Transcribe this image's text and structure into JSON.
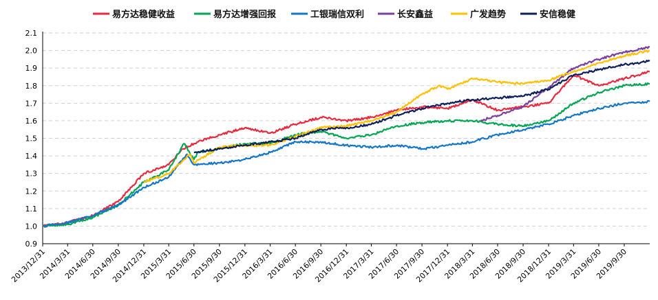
{
  "chart_data": {
    "type": "line",
    "title": "",
    "xlabel": "",
    "ylabel": "",
    "ylim": [
      0.9,
      2.1
    ],
    "yticks": [
      "0.9",
      "1.0",
      "1.1",
      "1.2",
      "1.3",
      "1.4",
      "1.5",
      "1.6",
      "1.7",
      "1.8",
      "1.9",
      "2.0",
      "2.1"
    ],
    "xticks": [
      "2013/12/31",
      "2014/3/31",
      "2014/6/30",
      "2014/9/30",
      "2014/12/31",
      "2015/3/31",
      "2015/6/30",
      "2015/9/30",
      "2015/12/31",
      "2016/3/31",
      "2016/6/30",
      "2016/9/30",
      "2016/12/31",
      "2017/3/31",
      "2017/6/30",
      "2017/9/30",
      "2017/12/31",
      "2018/3/31",
      "2018/6/30",
      "2018/9/30",
      "2018/12/31",
      "2019/3/31",
      "2019/6/30",
      "2019/9/30"
    ],
    "x_start": "2013/12/31",
    "x_end": "2019/12/31",
    "grid": "horizontal dashed",
    "legend": "top",
    "series": [
      {
        "name": "易方达稳健收益",
        "color": "#e8293f",
        "x": [
          "2013/12/31",
          "2014/3/31",
          "2014/6/30",
          "2014/9/30",
          "2014/12/31",
          "2015/3/31",
          "2015/5/20",
          "2015/6/30",
          "2015/7/15",
          "2015/9/30",
          "2015/12/31",
          "2016/3/31",
          "2016/6/30",
          "2016/9/30",
          "2016/12/31",
          "2017/3/31",
          "2017/6/30",
          "2017/9/30",
          "2017/12/31",
          "2018/3/31",
          "2018/6/30",
          "2018/9/30",
          "2018/12/31",
          "2019/3/31",
          "2019/6/30",
          "2019/9/30",
          "2019/12/31"
        ],
        "values": [
          1.0,
          1.02,
          1.06,
          1.14,
          1.3,
          1.35,
          1.44,
          1.47,
          1.48,
          1.52,
          1.56,
          1.53,
          1.58,
          1.62,
          1.6,
          1.62,
          1.66,
          1.68,
          1.67,
          1.72,
          1.66,
          1.68,
          1.7,
          1.86,
          1.8,
          1.84,
          1.88
        ]
      },
      {
        "name": "易方达增强回报",
        "color": "#00a651",
        "x": [
          "2013/12/31",
          "2014/3/31",
          "2014/6/30",
          "2014/9/30",
          "2014/12/31",
          "2015/3/31",
          "2015/5/25",
          "2015/6/30",
          "2015/7/15",
          "2015/9/30",
          "2015/12/31",
          "2016/3/31",
          "2016/6/30",
          "2016/9/30",
          "2016/12/31",
          "2017/3/31",
          "2017/6/30",
          "2017/9/30",
          "2017/12/31",
          "2018/3/31",
          "2018/6/30",
          "2018/9/30",
          "2018/12/31",
          "2019/3/31",
          "2019/6/30",
          "2019/9/30",
          "2019/12/31"
        ],
        "values": [
          1.0,
          1.01,
          1.05,
          1.12,
          1.25,
          1.32,
          1.47,
          1.38,
          1.42,
          1.44,
          1.47,
          1.47,
          1.52,
          1.54,
          1.5,
          1.52,
          1.57,
          1.59,
          1.6,
          1.6,
          1.58,
          1.57,
          1.6,
          1.7,
          1.76,
          1.8,
          1.81
        ]
      },
      {
        "name": "工银瑞信双利",
        "color": "#1476c6",
        "x": [
          "2013/12/31",
          "2014/3/31",
          "2014/6/30",
          "2014/9/30",
          "2014/12/31",
          "2015/3/31",
          "2015/6/5",
          "2015/6/30",
          "2015/9/30",
          "2015/12/31",
          "2016/3/31",
          "2016/6/30",
          "2016/9/30",
          "2016/12/31",
          "2017/3/31",
          "2017/6/30",
          "2017/9/30",
          "2017/12/31",
          "2018/3/31",
          "2018/6/30",
          "2018/9/30",
          "2018/12/31",
          "2019/3/31",
          "2019/6/30",
          "2019/9/30",
          "2019/12/31"
        ],
        "values": [
          1.0,
          1.02,
          1.06,
          1.12,
          1.22,
          1.28,
          1.41,
          1.35,
          1.36,
          1.38,
          1.42,
          1.48,
          1.48,
          1.46,
          1.45,
          1.46,
          1.44,
          1.46,
          1.48,
          1.52,
          1.55,
          1.58,
          1.63,
          1.67,
          1.7,
          1.71
        ]
      },
      {
        "name": "长安鑫益",
        "color": "#7b3fa0",
        "x": [
          "2018/4/30",
          "2018/6/30",
          "2018/9/30",
          "2018/12/31",
          "2019/3/31",
          "2019/6/30",
          "2019/9/30",
          "2019/12/31"
        ],
        "values": [
          1.6,
          1.63,
          1.68,
          1.79,
          1.9,
          1.95,
          1.99,
          2.02
        ]
      },
      {
        "name": "广发趋势",
        "color": "#ffc000",
        "x": [
          "2014/12/31",
          "2015/3/31",
          "2015/6/15",
          "2015/6/30",
          "2015/9/30",
          "2015/12/31",
          "2016/3/31",
          "2016/6/30",
          "2016/9/30",
          "2016/12/31",
          "2017/3/31",
          "2017/6/30",
          "2017/9/30",
          "2017/11/30",
          "2017/12/31",
          "2018/3/31",
          "2018/6/30",
          "2018/9/30",
          "2018/12/31",
          "2019/3/31",
          "2019/6/30",
          "2019/9/30",
          "2019/12/31"
        ],
        "values": [
          1.25,
          1.3,
          1.41,
          1.36,
          1.45,
          1.46,
          1.46,
          1.51,
          1.56,
          1.57,
          1.6,
          1.65,
          1.75,
          1.8,
          1.78,
          1.84,
          1.82,
          1.81,
          1.83,
          1.88,
          1.93,
          1.97,
          2.0
        ]
      },
      {
        "name": "安信稳健",
        "color": "#0c1f5c",
        "x": [
          "2015/6/30",
          "2015/9/30",
          "2015/12/31",
          "2016/3/31",
          "2016/6/30",
          "2016/9/30",
          "2016/12/31",
          "2017/3/31",
          "2017/6/30",
          "2017/9/30",
          "2017/12/31",
          "2018/3/31",
          "2018/6/30",
          "2018/9/30",
          "2018/12/31",
          "2019/3/31",
          "2019/6/30",
          "2019/9/30",
          "2019/12/31"
        ],
        "values": [
          1.42,
          1.44,
          1.46,
          1.48,
          1.5,
          1.55,
          1.56,
          1.58,
          1.63,
          1.67,
          1.7,
          1.72,
          1.73,
          1.74,
          1.78,
          1.86,
          1.89,
          1.92,
          1.94
        ]
      }
    ]
  }
}
